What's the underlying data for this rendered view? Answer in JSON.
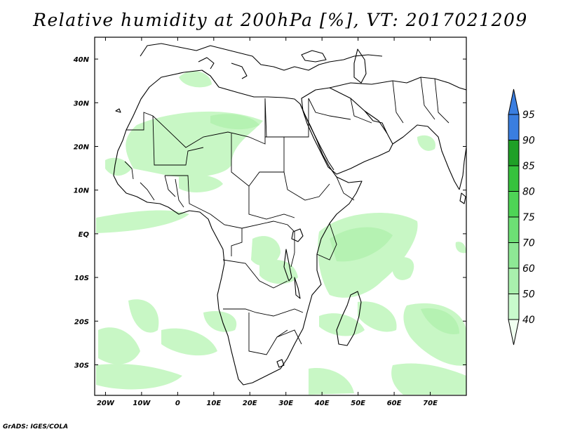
{
  "title": "Relative humidity at 200hPa [%], VT: 2017021209",
  "credit": "GrADS: IGES/COLA",
  "map": {
    "lon_range": [
      -23,
      80
    ],
    "lat_range": [
      -37,
      45
    ],
    "lon_ticks": [
      {
        "value": -20,
        "label": "20W"
      },
      {
        "value": -10,
        "label": "10W"
      },
      {
        "value": 0,
        "label": "0"
      },
      {
        "value": 10,
        "label": "10E"
      },
      {
        "value": 20,
        "label": "20E"
      },
      {
        "value": 30,
        "label": "30E"
      },
      {
        "value": 40,
        "label": "40E"
      },
      {
        "value": 50,
        "label": "50E"
      },
      {
        "value": 60,
        "label": "60E"
      },
      {
        "value": 70,
        "label": "70E"
      }
    ],
    "lat_ticks": [
      {
        "value": 40,
        "label": "40N"
      },
      {
        "value": 30,
        "label": "30N"
      },
      {
        "value": 20,
        "label": "20N"
      },
      {
        "value": 10,
        "label": "10N"
      },
      {
        "value": 0,
        "label": "EQ"
      },
      {
        "value": -10,
        "label": "10S"
      },
      {
        "value": -20,
        "label": "20S"
      },
      {
        "value": -30,
        "label": "30S"
      }
    ]
  },
  "colorbar": {
    "levels": [
      "40",
      "50",
      "60",
      "70",
      "75",
      "80",
      "85",
      "90",
      "95"
    ],
    "colors": [
      "#f0fff0",
      "#c8facc",
      "#a9f0ad",
      "#8ee895",
      "#6de075",
      "#4ed456",
      "#36c23d",
      "#1fa027",
      "#3a7ee0"
    ]
  },
  "colors": {
    "shade_light": "#c8f7c5",
    "shade_mid": "#b5f2b2",
    "coast": "#000000"
  }
}
